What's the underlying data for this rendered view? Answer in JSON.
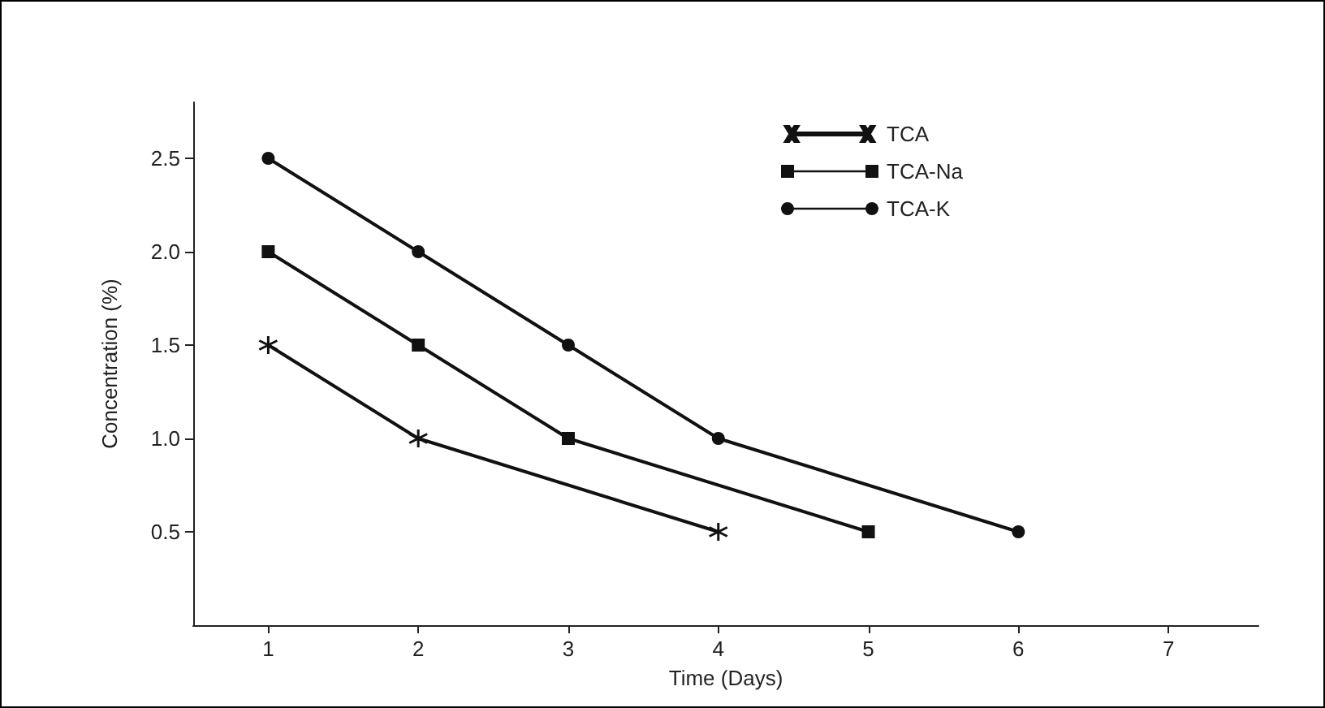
{
  "chart_data": {
    "type": "line",
    "xlabel": "Time (Days)",
    "ylabel": "Concentration (%)",
    "xlim": [
      0.5,
      7.6
    ],
    "xticks": [
      1,
      2,
      3,
      4,
      5,
      6,
      7
    ],
    "ylim": [
      0,
      2.8
    ],
    "yticks": [
      {
        "value": 0.5,
        "label": "0.5"
      },
      {
        "value": 1,
        "label": "1.0"
      },
      {
        "value": 1.5,
        "label": "1.5"
      },
      {
        "value": 2,
        "label": "2.0"
      },
      {
        "value": 2.5,
        "label": "2.5"
      }
    ],
    "grid": false,
    "legend": "top right",
    "line_style": "solid",
    "series": [
      {
        "name": "TCA",
        "color": "#111111",
        "marker": "cross",
        "x": [
          1,
          2,
          4
        ],
        "values": [
          1.5,
          1.0,
          0.5
        ]
      },
      {
        "name": "TCA-Na",
        "color": "#111111",
        "marker": "square",
        "x": [
          1,
          2,
          3,
          5
        ],
        "values": [
          2.0,
          1.5,
          1.0,
          0.5
        ]
      },
      {
        "name": "TCA-K",
        "color": "#111111",
        "marker": "circle",
        "x": [
          1,
          2,
          3,
          4,
          6
        ],
        "values": [
          2.5,
          2.0,
          1.5,
          1.0,
          0.5
        ]
      }
    ]
  }
}
